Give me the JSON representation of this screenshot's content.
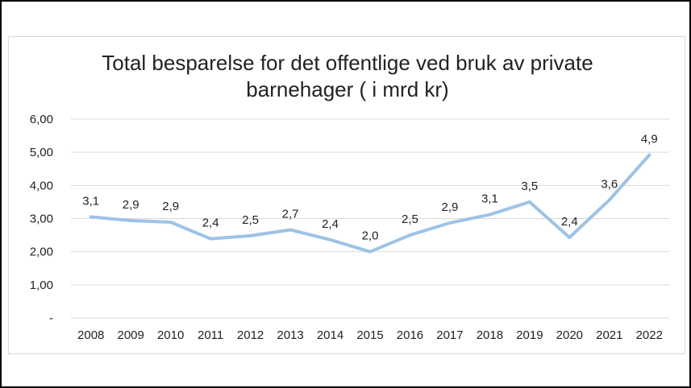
{
  "chart_data": {
    "type": "line",
    "title": "Total besparelse for det offentlige ved bruk av private barnehager ( i mrd kr)",
    "categories": [
      "2008",
      "2009",
      "2010",
      "2011",
      "2012",
      "2013",
      "2014",
      "2015",
      "2016",
      "2017",
      "2018",
      "2019",
      "2020",
      "2021",
      "2022"
    ],
    "series": [
      {
        "values": [
          3.05,
          2.94,
          2.89,
          2.39,
          2.48,
          2.66,
          2.36,
          2.0,
          2.5,
          2.87,
          3.12,
          3.5,
          2.43,
          3.56,
          4.92
        ],
        "labels": [
          "3,1",
          "2,9",
          "2,9",
          "2,4",
          "2,5",
          "2,7",
          "2,4",
          "2,0",
          "2,5",
          "2,9",
          "3,1",
          "3,5",
          "2,4",
          "3,6",
          "4,9"
        ],
        "color": "#9dc3e6"
      }
    ],
    "yticks": [
      "-",
      "1,00",
      "2,00",
      "3,00",
      "4,00",
      "5,00",
      "6,00"
    ],
    "ylim": [
      0,
      6
    ],
    "grid": true,
    "legend": "none",
    "gridline_color": "#d9d9d9"
  }
}
